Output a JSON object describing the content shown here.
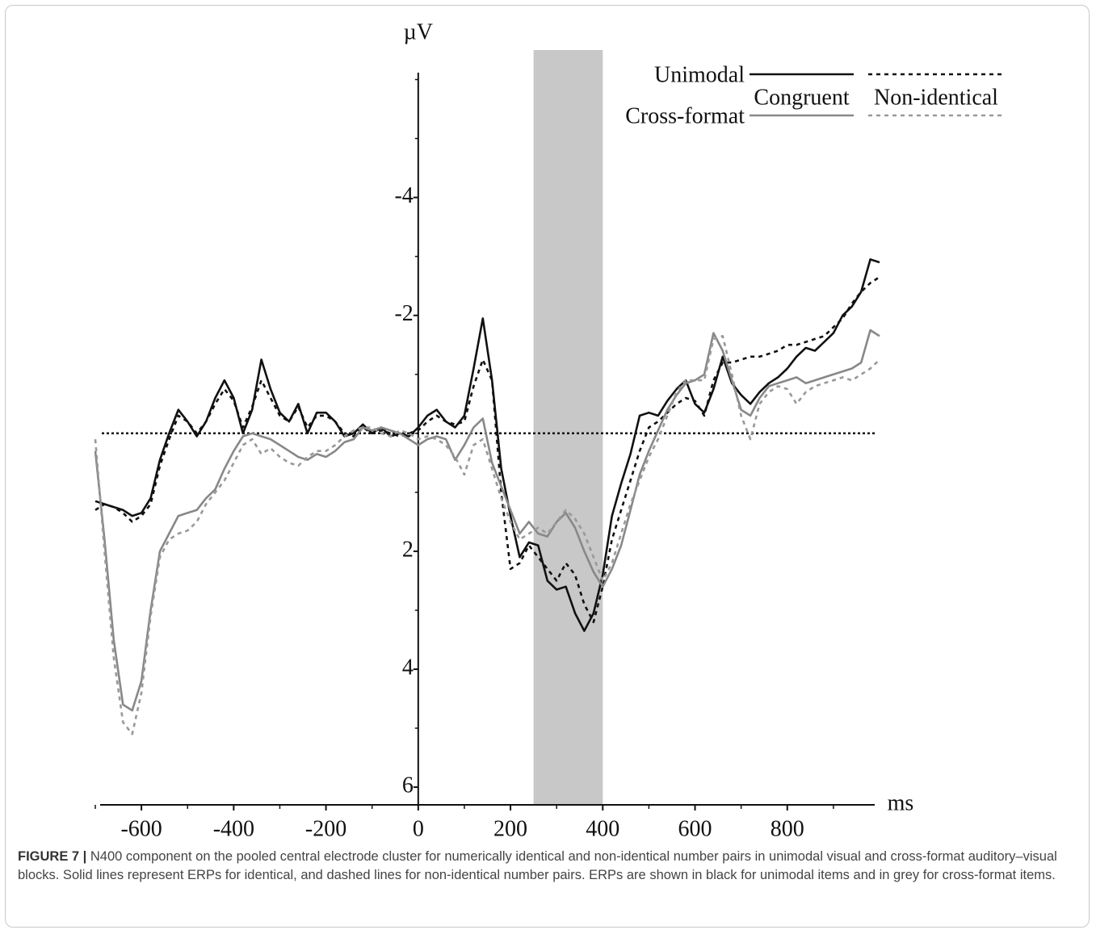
{
  "chart_data": {
    "type": "line",
    "x_label": "ms",
    "y_label": "µV",
    "xlim": [
      -700,
      1000
    ],
    "ylim": [
      -6.5,
      6.3
    ],
    "y_inverted": true,
    "yaxis_position": 0,
    "xticks": [
      -600,
      -400,
      -200,
      0,
      200,
      400,
      600,
      800
    ],
    "xticks_minor": [
      -700,
      -500,
      -300,
      -100,
      100,
      300,
      500,
      700,
      900
    ],
    "yticks": [
      -4,
      -2,
      2,
      4,
      6
    ],
    "yticks_minor": [
      -6,
      -5,
      -3,
      -1,
      0,
      1,
      3,
      5
    ],
    "reference_line": {
      "y": 0,
      "color": "#111",
      "dash": "dotted"
    },
    "highlight": {
      "x": [
        250,
        400
      ],
      "color": "#c8c8c8"
    },
    "legend": {
      "rows": [
        "Unimodal",
        "Cross-format"
      ],
      "columns": [
        "Congruent",
        "Non-identical"
      ],
      "row_colors": [
        "#111",
        "#888"
      ],
      "position": "upper right"
    },
    "x": [
      -700,
      -680,
      -660,
      -640,
      -620,
      -600,
      -580,
      -560,
      -540,
      -520,
      -500,
      -480,
      -460,
      -440,
      -420,
      -400,
      -380,
      -360,
      -340,
      -320,
      -300,
      -280,
      -260,
      -240,
      -220,
      -200,
      -180,
      -160,
      -140,
      -120,
      -100,
      -80,
      -60,
      -40,
      -20,
      0,
      20,
      40,
      60,
      80,
      100,
      120,
      140,
      160,
      180,
      200,
      220,
      240,
      260,
      280,
      300,
      320,
      340,
      360,
      380,
      400,
      420,
      440,
      460,
      480,
      500,
      520,
      540,
      560,
      580,
      600,
      620,
      640,
      660,
      680,
      700,
      720,
      740,
      760,
      780,
      800,
      820,
      840,
      860,
      880,
      900,
      920,
      940,
      960,
      980,
      1000
    ],
    "series": [
      {
        "color": "#111",
        "dash": "solid",
        "values": [
          1.15,
          1.2,
          1.25,
          1.3,
          1.4,
          1.35,
          1.1,
          0.45,
          0,
          -0.4,
          -0.2,
          0.05,
          -0.2,
          -0.6,
          -0.9,
          -0.6,
          0,
          -0.4,
          -1.25,
          -0.75,
          -0.35,
          -0.2,
          -0.5,
          0,
          -0.35,
          -0.35,
          -0.2,
          0.05,
          0,
          -0.15,
          0,
          -0.1,
          0.05,
          0,
          0.05,
          -0.1,
          -0.3,
          -0.4,
          -0.2,
          -0.1,
          -0.3,
          -1.1,
          -1.95,
          -0.9,
          0.6,
          1.4,
          2.1,
          1.85,
          1.9,
          2.5,
          2.65,
          2.6,
          3.05,
          3.35,
          3.05,
          2.4,
          1.4,
          0.85,
          0.35,
          -0.3,
          -0.35,
          -0.3,
          -0.55,
          -0.75,
          -0.9,
          -0.5,
          -0.35,
          -0.75,
          -1.3,
          -0.85,
          -0.65,
          -0.5,
          -0.7,
          -0.85,
          -0.95,
          -1.1,
          -1.3,
          -1.45,
          -1.4,
          -1.55,
          -1.7,
          -2.0,
          -2.15,
          -2.4,
          -2.95,
          -2.9
        ]
      },
      {
        "color": "#111",
        "dash": "dashed",
        "values": [
          1.3,
          1.2,
          1.25,
          1.35,
          1.5,
          1.4,
          1.2,
          0.55,
          0.1,
          -0.3,
          -0.2,
          0,
          -0.2,
          -0.5,
          -0.75,
          -0.55,
          -0.1,
          -0.45,
          -0.9,
          -0.6,
          -0.3,
          -0.2,
          -0.45,
          -0.1,
          -0.3,
          -0.3,
          -0.2,
          0,
          0.05,
          -0.1,
          0,
          -0.05,
          0,
          0.05,
          0,
          -0.05,
          -0.2,
          -0.3,
          -0.2,
          -0.15,
          -0.2,
          -0.8,
          -1.25,
          -0.9,
          1.0,
          2.3,
          2.2,
          1.9,
          2.1,
          2.3,
          2.5,
          2.2,
          2.4,
          2.9,
          3.2,
          2.6,
          1.8,
          1.3,
          0.8,
          0.3,
          -0.1,
          -0.2,
          -0.35,
          -0.5,
          -0.6,
          -0.55,
          -0.3,
          -0.9,
          -1.2,
          -1.2,
          -1.25,
          -1.3,
          -1.3,
          -1.35,
          -1.4,
          -1.5,
          -1.5,
          -1.55,
          -1.6,
          -1.65,
          -1.8,
          -1.95,
          -2.2,
          -2.4,
          -2.55,
          -2.65
        ]
      },
      {
        "color": "#888",
        "dash": "solid",
        "values": [
          0.3,
          1.8,
          3.5,
          4.6,
          4.7,
          4.2,
          3.0,
          2.0,
          1.7,
          1.4,
          1.35,
          1.3,
          1.1,
          0.95,
          0.6,
          0.3,
          0.05,
          0,
          0.05,
          0.1,
          0.2,
          0.3,
          0.4,
          0.45,
          0.35,
          0.4,
          0.3,
          0.15,
          0.1,
          -0.1,
          -0.05,
          -0.1,
          -0.05,
          0,
          0.1,
          0.2,
          0.1,
          0.05,
          0.1,
          0.45,
          0.2,
          -0.1,
          -0.25,
          0.5,
          0.9,
          1.3,
          1.7,
          1.5,
          1.7,
          1.75,
          1.5,
          1.35,
          1.6,
          2.0,
          2.35,
          2.6,
          2.3,
          1.9,
          1.3,
          0.7,
          0.3,
          -0.05,
          -0.4,
          -0.65,
          -0.85,
          -0.9,
          -1.0,
          -1.7,
          -1.4,
          -0.9,
          -0.4,
          -0.3,
          -0.6,
          -0.8,
          -0.85,
          -0.9,
          -0.95,
          -0.85,
          -0.9,
          -0.95,
          -1.0,
          -1.05,
          -1.1,
          -1.2,
          -1.75,
          -1.65
        ]
      },
      {
        "color": "#999",
        "dash": "dashed",
        "values": [
          0.1,
          2.0,
          3.8,
          4.9,
          5.1,
          4.4,
          3.1,
          2.1,
          1.8,
          1.7,
          1.65,
          1.5,
          1.2,
          1.0,
          0.8,
          0.5,
          0.2,
          0.1,
          0.35,
          0.25,
          0.4,
          0.5,
          0.55,
          0.4,
          0.3,
          0.3,
          0.2,
          0.05,
          -0.05,
          -0.1,
          -0.1,
          0,
          0.05,
          -0.05,
          0,
          0.1,
          0.05,
          0.1,
          0.2,
          0.4,
          0.7,
          0.2,
          0.1,
          0.6,
          1.1,
          1.5,
          1.8,
          1.7,
          1.6,
          1.7,
          1.5,
          1.3,
          1.45,
          1.7,
          2.1,
          2.5,
          2.2,
          1.7,
          1.2,
          0.8,
          0.4,
          0.1,
          -0.3,
          -0.7,
          -0.9,
          -0.9,
          -0.9,
          -1.6,
          -1.65,
          -1.0,
          -0.3,
          0.1,
          -0.5,
          -0.7,
          -0.8,
          -0.75,
          -0.5,
          -0.7,
          -0.8,
          -0.85,
          -0.9,
          -0.95,
          -0.9,
          -1.0,
          -1.1,
          -1.25
        ]
      }
    ]
  },
  "caption": {
    "label": "FIGURE 7 |",
    "text": "N400 component on the pooled central electrode cluster for numerically identical and non-identical number pairs in unimodal visual and cross-format auditory–visual blocks. Solid lines represent ERPs for identical, and dashed lines for non-identical number pairs. ERPs are shown in black for unimodal items and in grey for cross-format items."
  }
}
